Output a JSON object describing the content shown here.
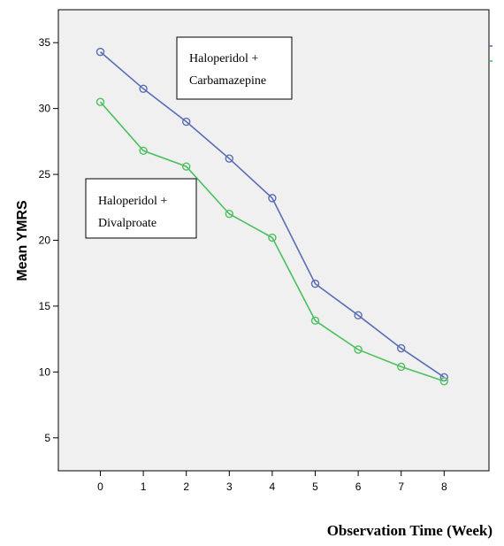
{
  "chart_data": {
    "type": "line",
    "xlabel": "Observation Time (Week)",
    "ylabel": "Mean YMRS",
    "x": [
      0,
      1,
      2,
      3,
      4,
      5,
      6,
      7,
      8
    ],
    "ylim": [
      2.5,
      37.5
    ],
    "yticks": [
      5,
      10,
      15,
      20,
      25,
      30,
      35
    ],
    "grid": false,
    "series": [
      {
        "label_lines": [
          "Haloperidol +",
          "Carbamazepine"
        ],
        "color": "#5b6db4",
        "values": [
          34.3,
          31.5,
          29.0,
          26.2,
          23.2,
          16.7,
          14.3,
          11.8,
          9.6
        ]
      },
      {
        "label_lines": [
          "Haloperidol  +",
          "Divalproate"
        ],
        "color": "#4dc060",
        "values": [
          30.5,
          26.8,
          25.6,
          22.0,
          20.2,
          13.9,
          11.7,
          10.4,
          9.3
        ]
      }
    ]
  }
}
